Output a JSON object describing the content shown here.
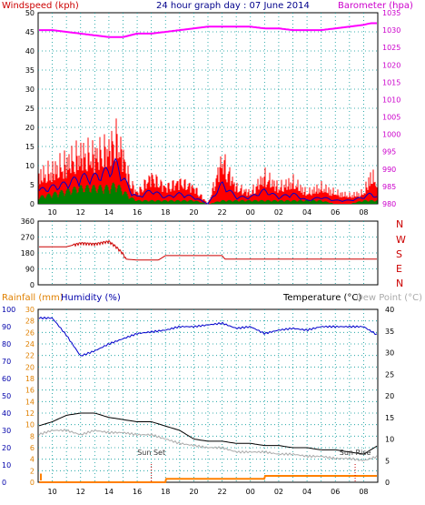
{
  "header": {
    "title": "24 hour graph day : 07 June 2014",
    "left_label": "Windspeed (kph)",
    "right_label": "Barometer (hpa)"
  },
  "x_axis": {
    "labels": [
      "10",
      "12",
      "14",
      "16",
      "18",
      "20",
      "22",
      "00",
      "02",
      "04",
      "06",
      "08"
    ]
  },
  "direction_letters": [
    "N",
    "W",
    "S",
    "E",
    "N"
  ],
  "bottom_header": {
    "rainfall": "Rainfall (mm)",
    "humidity": "Humidity (%)",
    "temperature": "Temperature (°C)",
    "dewpoint": "Dew Point (°C)"
  },
  "annotations": {
    "sunset": "Sun Set",
    "sunrise": "Sun Rise"
  },
  "colors": {
    "wind": "#ff0000",
    "wind_avg": "#0000cc",
    "wind_low": "#008000",
    "barometer": "#ff00ff",
    "direction": "#cc0000",
    "humidity": "#0000cc",
    "temperature": "#000000",
    "dewpoint": "#aaaaaa",
    "rain": "#ff8000",
    "grid": "#009999"
  },
  "chart_data": [
    {
      "type": "area",
      "title": "24 hour graph day : 07 June 2014",
      "ylabel": "Windspeed (kph)",
      "y2label": "Barometer (hpa)",
      "ylim": [
        0,
        50
      ],
      "y2lim": [
        980,
        1035
      ],
      "yticks": [
        0,
        5,
        10,
        15,
        20,
        25,
        30,
        35,
        40,
        45,
        50
      ],
      "y2ticks": [
        980,
        985,
        990,
        995,
        1000,
        1005,
        1010,
        1015,
        1020,
        1025,
        1030,
        1035
      ],
      "x": [
        9,
        10,
        11,
        12,
        13,
        14,
        14.5,
        15,
        15.5,
        16,
        17,
        18,
        19,
        20,
        21,
        22,
        23,
        24,
        25,
        26,
        27,
        28,
        29,
        30,
        31,
        32,
        32.5,
        33
      ],
      "series": [
        {
          "name": "Windspeed (kph)",
          "values": [
            10,
            12,
            15,
            18,
            18,
            20,
            24,
            18,
            8,
            4,
            10,
            6,
            8,
            6,
            0,
            16,
            6,
            4,
            10,
            6,
            8,
            4,
            6,
            4,
            3,
            4,
            10,
            8
          ]
        },
        {
          "name": "avg",
          "values": [
            4,
            5,
            6,
            8,
            8,
            10,
            12,
            8,
            4,
            2,
            4,
            2,
            3,
            2,
            0,
            6,
            2,
            2,
            4,
            2,
            3,
            1,
            2,
            1,
            1,
            2,
            3,
            2
          ]
        },
        {
          "name": "low",
          "values": [
            2,
            3,
            4,
            5,
            5,
            5,
            6,
            4,
            2,
            1,
            1,
            1,
            1,
            1,
            0,
            1,
            1,
            1,
            1,
            1,
            1,
            1,
            1,
            0,
            0,
            1,
            1,
            1
          ]
        },
        {
          "name": "Barometer (hpa)",
          "axis": "y2",
          "values": [
            1030,
            1030,
            1029.5,
            1029,
            1028.5,
            1028,
            1028,
            1028,
            1028.5,
            1029,
            1029,
            1029.5,
            1030,
            1030.5,
            1031,
            1031,
            1031,
            1031,
            1030.5,
            1030.5,
            1030,
            1030,
            1030,
            1030.5,
            1031,
            1031.5,
            1032,
            1032
          ]
        }
      ]
    },
    {
      "type": "line",
      "ylim": [
        0,
        360
      ],
      "yticks": [
        0,
        90,
        180,
        270,
        360
      ],
      "x": [
        9,
        11,
        12,
        13,
        14,
        14.5,
        15,
        15.2,
        16,
        17,
        17.5,
        18,
        19,
        20,
        21,
        22,
        22.2,
        23,
        24,
        28,
        32,
        33
      ],
      "series": [
        {
          "name": "Wind direction",
          "values": [
            215,
            215,
            235,
            230,
            245,
            215,
            175,
            145,
            140,
            140,
            140,
            165,
            165,
            165,
            165,
            165,
            145,
            145,
            145,
            145,
            145,
            145
          ]
        }
      ]
    },
    {
      "type": "line",
      "ylabel": "Rainfall (mm)",
      "ylim": [
        0,
        30
      ],
      "yticks": [
        0,
        2,
        4,
        6,
        8,
        10,
        12,
        14,
        16,
        18,
        20,
        22,
        24,
        26,
        28,
        30
      ],
      "y2ticks_humidity": [
        0,
        10,
        20,
        30,
        40,
        50,
        60,
        70,
        80,
        90,
        100
      ],
      "y2label": "Temperature (°C)",
      "y2lim": [
        0,
        40
      ],
      "y2ticks": [
        0,
        5,
        10,
        15,
        20,
        25,
        30,
        35,
        40
      ],
      "x": [
        9,
        10,
        11,
        12,
        13,
        14,
        15,
        16,
        17,
        18,
        19,
        20,
        21,
        22,
        23,
        24,
        25,
        26,
        27,
        28,
        29,
        30,
        31,
        32,
        33
      ],
      "series": [
        {
          "name": "Humidity (%)",
          "axis": "humidity",
          "values": [
            95,
            95,
            85,
            73,
            76,
            80,
            83,
            86,
            87,
            88,
            90,
            90,
            91,
            92,
            89,
            90,
            86,
            88,
            89,
            88,
            90,
            90,
            90,
            90,
            85
          ]
        },
        {
          "name": "Temperature (°C)",
          "axis": "y2",
          "values": [
            13,
            14,
            15.5,
            16,
            16,
            15,
            14.5,
            14,
            14,
            13,
            12,
            10,
            9.5,
            9.5,
            9,
            9,
            8.5,
            8.5,
            8,
            8,
            7.5,
            7.5,
            7,
            6.5,
            8.5
          ]
        },
        {
          "name": "Dew Point (°C)",
          "axis": "y2",
          "values": [
            11,
            12,
            12,
            11,
            12,
            11.5,
            11.5,
            11,
            11,
            10,
            9,
            8.5,
            8,
            8,
            7,
            7,
            7,
            6.5,
            6.5,
            6,
            6,
            5.5,
            5.5,
            5,
            6
          ]
        },
        {
          "name": "Rainfall (mm)",
          "values": [
            0,
            0,
            0,
            0,
            0,
            0,
            0,
            0,
            0,
            0.6,
            0.6,
            0.6,
            0.6,
            0.6,
            0.6,
            0.6,
            1.1,
            1.1,
            1.1,
            1.1,
            1.1,
            1.1,
            1.1,
            1.1,
            1.1
          ]
        }
      ],
      "annotations": [
        "Sun Set",
        "Sun Rise"
      ]
    }
  ]
}
